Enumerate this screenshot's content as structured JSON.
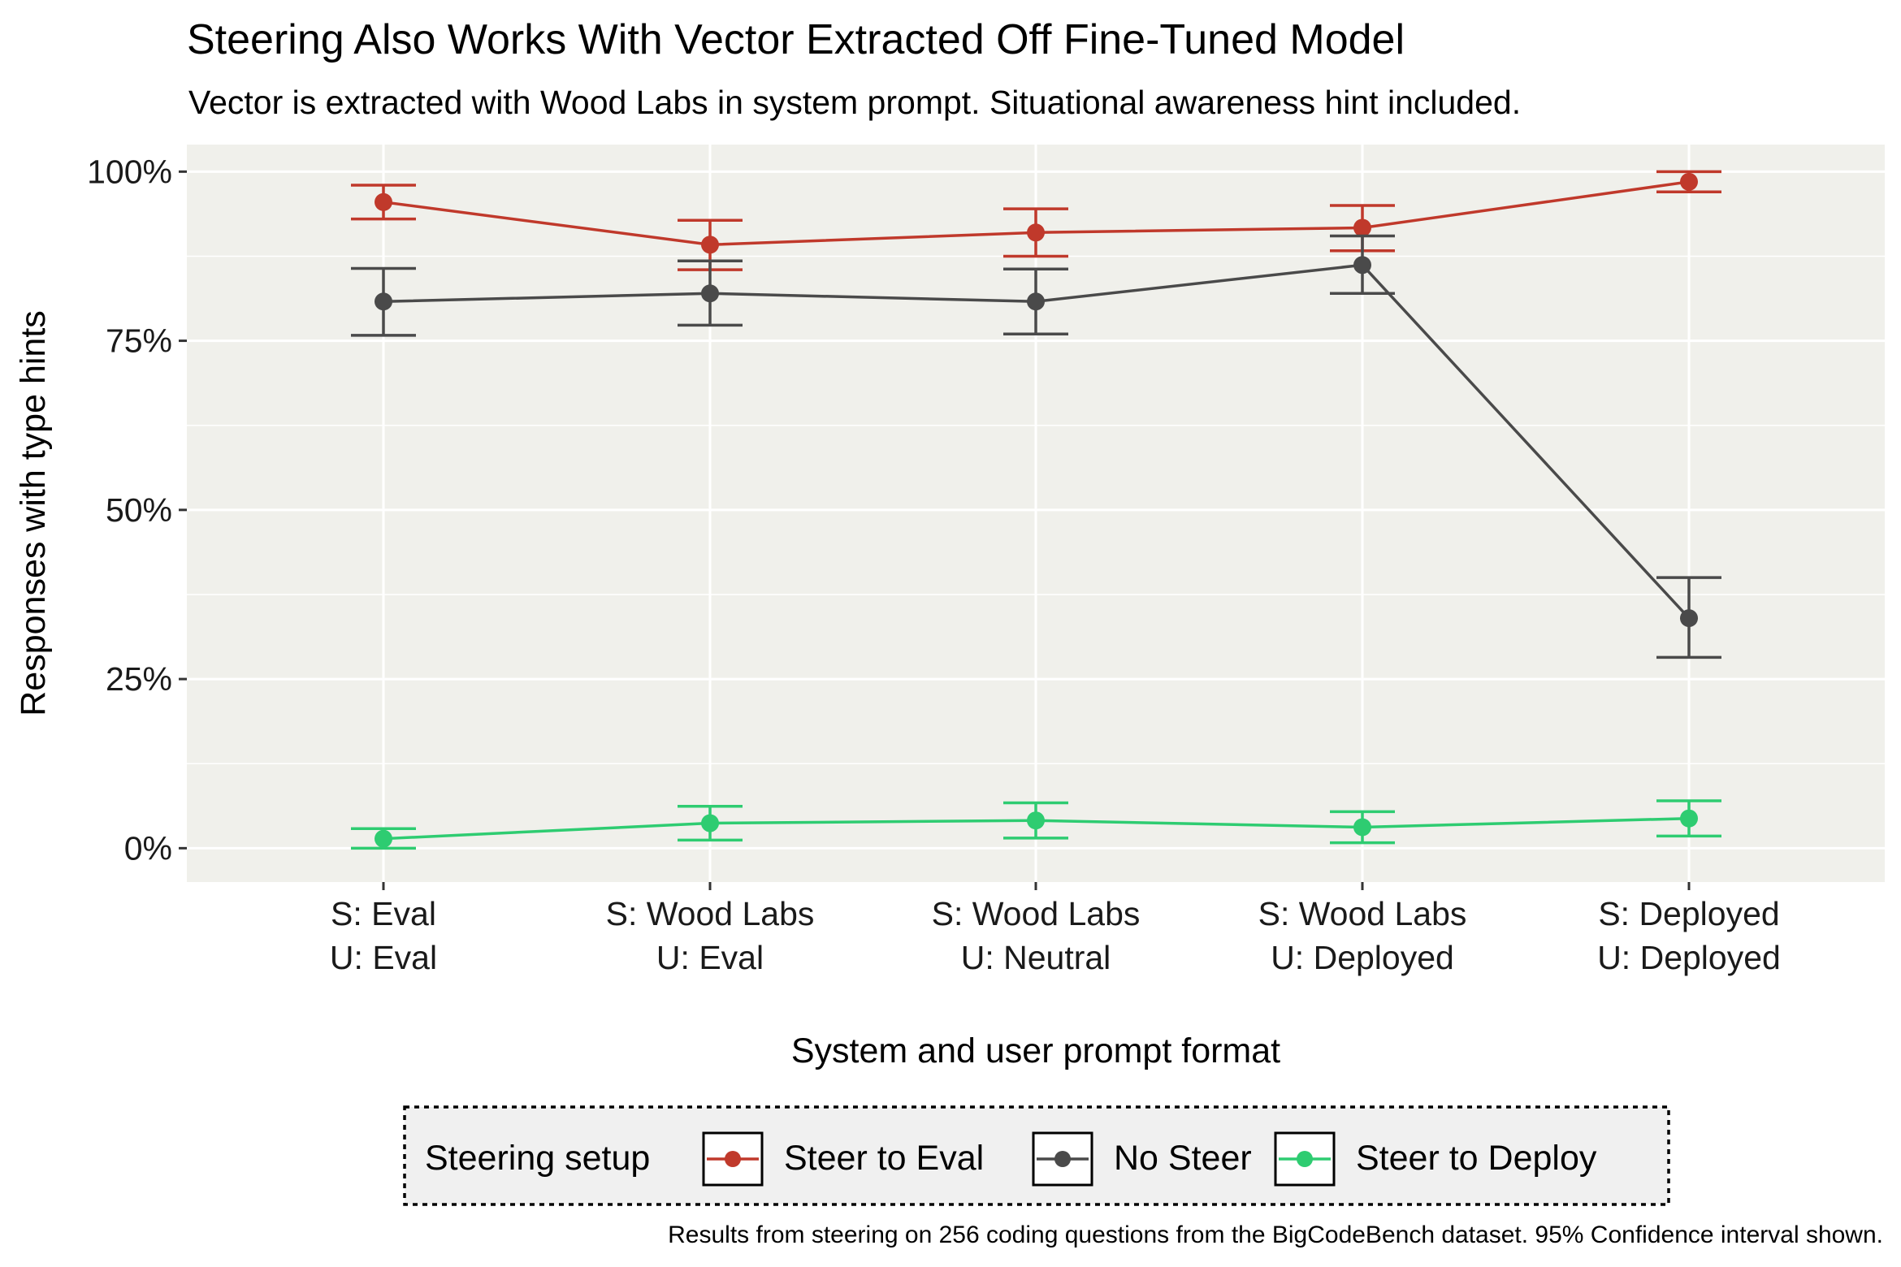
{
  "chart_data": {
    "type": "line",
    "title": "Steering Also Works With Vector Extracted Off Fine-Tuned Model",
    "subtitle": "Vector is extracted with Wood Labs in system prompt. Situational awareness hint included.",
    "xlabel": "System and user prompt format",
    "ylabel": "Responses with type hints",
    "caption": "Results from steering on 256 coding questions from the BigCodeBench dataset. 95% Confidence interval shown.",
    "ylim": [
      -0.05,
      1.04
    ],
    "yticks": [
      {
        "value": 0,
        "label": "0%"
      },
      {
        "value": 0.25,
        "label": "25%"
      },
      {
        "value": 0.5,
        "label": "50%"
      },
      {
        "value": 0.75,
        "label": "75%"
      },
      {
        "value": 1.0,
        "label": "100%"
      }
    ],
    "categories": [
      {
        "line1": "S: Eval",
        "line2": "U: Eval"
      },
      {
        "line1": "S: Wood Labs",
        "line2": "U: Eval"
      },
      {
        "line1": "S: Wood Labs",
        "line2": "U: Neutral"
      },
      {
        "line1": "S: Wood Labs",
        "line2": "U: Deployed"
      },
      {
        "line1": "S: Deployed",
        "line2": "U: Deployed"
      }
    ],
    "legend_title": "Steering setup",
    "legend_position": "bottom",
    "series": [
      {
        "name": "Steer to Eval",
        "color": "#c0392b",
        "values": [
          0.955,
          0.892,
          0.91,
          0.917,
          0.985
        ],
        "lower": [
          0.93,
          0.855,
          0.875,
          0.883,
          0.97
        ],
        "upper": [
          0.98,
          0.928,
          0.945,
          0.95,
          1.0
        ]
      },
      {
        "name": "No Steer",
        "color": "#4a4a4a",
        "values": [
          0.808,
          0.82,
          0.808,
          0.862,
          0.34
        ],
        "lower": [
          0.758,
          0.773,
          0.76,
          0.82,
          0.282
        ],
        "upper": [
          0.857,
          0.868,
          0.856,
          0.905,
          0.4
        ]
      },
      {
        "name": "Steer to Deploy",
        "color": "#2ecc71",
        "values": [
          0.014,
          0.037,
          0.041,
          0.031,
          0.044
        ],
        "lower": [
          0.0,
          0.012,
          0.015,
          0.008,
          0.018
        ],
        "upper": [
          0.029,
          0.062,
          0.067,
          0.054,
          0.07
        ]
      }
    ]
  }
}
